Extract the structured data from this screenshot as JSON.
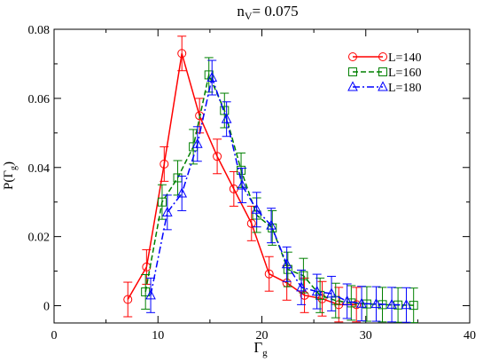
{
  "chart_data": {
    "type": "line",
    "title": "n_V= 0.075",
    "title_main": "n",
    "title_sub": "V",
    "title_rest": "= 0.075",
    "xlabel_main": "Γ",
    "xlabel_sub": "g",
    "ylabel_main": "P(Γ",
    "ylabel_sub": "g",
    "ylabel_close": ")",
    "xlim": [
      0,
      40
    ],
    "ylim": [
      -0.005,
      0.08
    ],
    "x_ticks": [
      0,
      10,
      20,
      30,
      40
    ],
    "x_tick_labels": [
      "0",
      "10",
      "20",
      "30",
      "40"
    ],
    "y_ticks": [
      0,
      0.02,
      0.04,
      0.06,
      0.08
    ],
    "y_tick_labels": [
      "0",
      "0.02",
      "0.04",
      "0.06",
      "0.08"
    ],
    "grid": false,
    "legend_position": "top-right",
    "series": [
      {
        "name": "L=140",
        "color": "#ff0000",
        "marker": "circle",
        "dash": "solid",
        "x": [
          7.1,
          8.9,
          10.6,
          12.3,
          14.0,
          15.7,
          17.3,
          19.0,
          20.7,
          22.4,
          24.1,
          25.8,
          27.4,
          29.1
        ],
        "y": [
          0.0018,
          0.0112,
          0.041,
          0.073,
          0.055,
          0.0432,
          0.0338,
          0.0238,
          0.0092,
          0.0066,
          0.003,
          0.002,
          0.0003,
          0.0003
        ],
        "err": [
          0.005,
          0.005,
          0.005,
          0.005,
          0.005,
          0.005,
          0.005,
          0.005,
          0.005,
          0.005,
          0.005,
          0.005,
          0.005,
          0.005
        ]
      },
      {
        "name": "L=160",
        "color": "#008000",
        "marker": "square",
        "dash": "dashed",
        "x": [
          8.8,
          10.4,
          11.9,
          13.4,
          14.9,
          16.4,
          18.0,
          19.5,
          21.0,
          22.5,
          24.0,
          25.6,
          27.1,
          28.6,
          30.1,
          31.6,
          33.1,
          34.6
        ],
        "y": [
          0.004,
          0.03,
          0.037,
          0.046,
          0.0668,
          0.0565,
          0.0392,
          0.0262,
          0.0225,
          0.0105,
          0.0087,
          0.003,
          0.0015,
          0.0008,
          0.0005,
          0.0003,
          0.0002,
          0.0001
        ],
        "err": [
          0.005,
          0.005,
          0.005,
          0.005,
          0.005,
          0.005,
          0.005,
          0.005,
          0.005,
          0.005,
          0.005,
          0.005,
          0.005,
          0.005,
          0.005,
          0.005,
          0.005,
          0.005
        ]
      },
      {
        "name": "L=180",
        "color": "#0000ff",
        "marker": "triangle",
        "dash": "dashdot",
        "x": [
          9.3,
          10.9,
          12.3,
          13.8,
          15.2,
          16.6,
          18.1,
          19.5,
          20.9,
          22.4,
          23.8,
          25.3,
          26.7,
          28.2,
          29.6,
          31.0,
          32.5,
          33.9
        ],
        "y": [
          0.003,
          0.027,
          0.0325,
          0.0468,
          0.066,
          0.054,
          0.0348,
          0.0278,
          0.0232,
          0.012,
          0.0053,
          0.0041,
          0.0035,
          0.0013,
          0.0006,
          0.0005,
          0.0003,
          0.0002
        ],
        "err": [
          0.005,
          0.005,
          0.005,
          0.005,
          0.005,
          0.005,
          0.005,
          0.005,
          0.005,
          0.005,
          0.005,
          0.005,
          0.005,
          0.005,
          0.005,
          0.005,
          0.005,
          0.005
        ]
      }
    ]
  }
}
